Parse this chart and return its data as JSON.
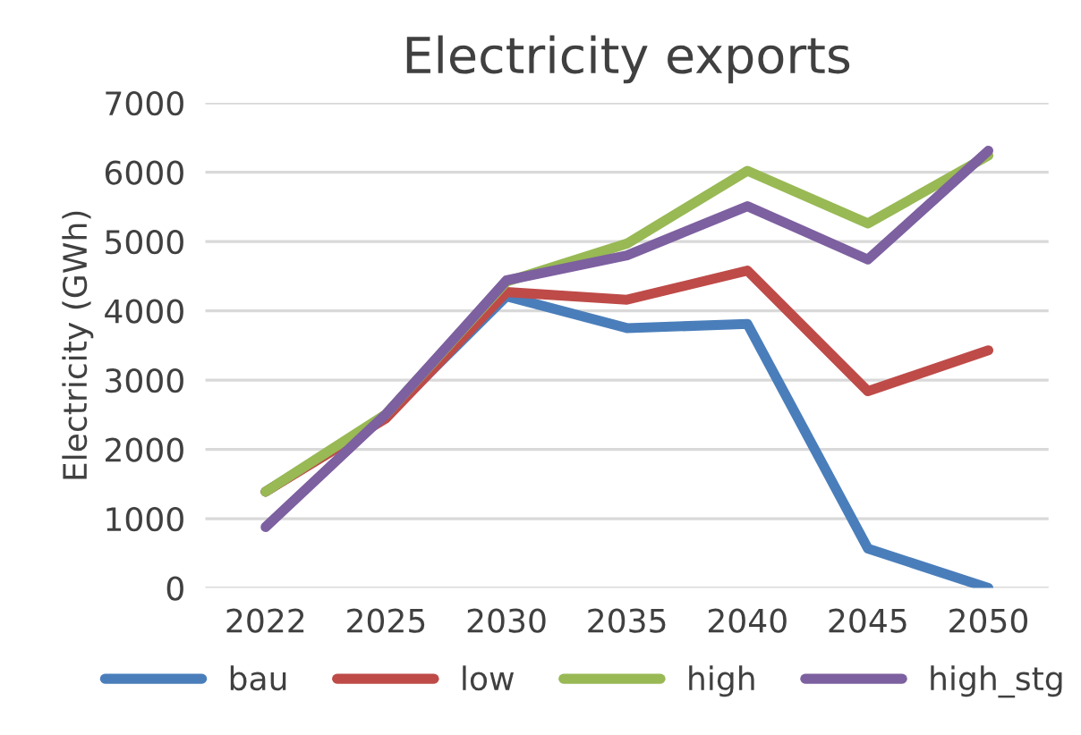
{
  "chart_data": {
    "type": "line",
    "title": "Electricity exports",
    "ylabel": "Electricity (GWh)",
    "categories": [
      "2022",
      "2025",
      "2030",
      "2035",
      "2040",
      "2045",
      "2050"
    ],
    "series": [
      {
        "name": "bau",
        "color": "#4a7ebb",
        "values": [
          1390,
          2480,
          4210,
          3750,
          3810,
          570,
          0
        ]
      },
      {
        "name": "low",
        "color": "#be4b48",
        "values": [
          1390,
          2450,
          4270,
          4160,
          4580,
          2840,
          3430
        ]
      },
      {
        "name": "high",
        "color": "#98b954",
        "values": [
          1390,
          2510,
          4420,
          4970,
          6020,
          5260,
          6240
        ]
      },
      {
        "name": "high_stg",
        "color": "#7d60a0",
        "values": [
          880,
          2510,
          4440,
          4800,
          5510,
          4740,
          6310
        ]
      }
    ],
    "ylim": [
      0,
      7000
    ],
    "yticks": [
      0,
      1000,
      2000,
      3000,
      4000,
      5000,
      6000,
      7000
    ],
    "grid": "y",
    "legend": "bottom",
    "marker": "none",
    "line_style": "solid"
  }
}
